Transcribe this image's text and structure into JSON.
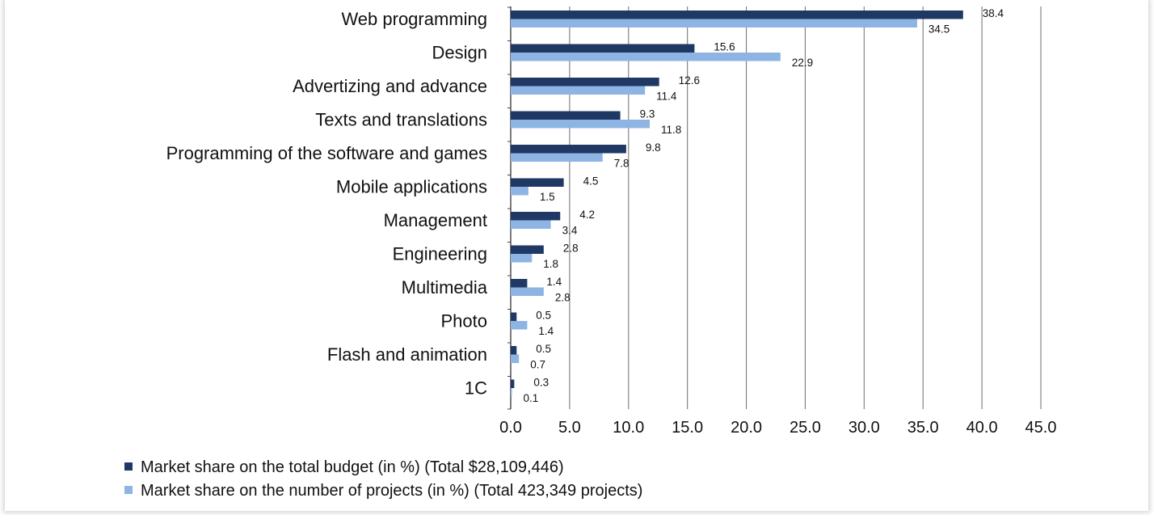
{
  "chart_data": {
    "type": "bar",
    "orientation": "horizontal",
    "title": "",
    "xlabel": "",
    "ylabel": "",
    "xlim": [
      0,
      45
    ],
    "x_ticks": [
      "0.0",
      "5.0",
      "10.0",
      "15.0",
      "20.0",
      "25.0",
      "30.0",
      "35.0",
      "40.0",
      "45.0"
    ],
    "grid": "vertical",
    "legend_position": "bottom",
    "categories": [
      "Web programming",
      "Design",
      "Advertizing and advance",
      "Texts and translations",
      "Programming of the software and games",
      "Mobile applications",
      "Management",
      "Engineering",
      "Multimedia",
      "Photo",
      "Flash and animation",
      "1C"
    ],
    "series": [
      {
        "name": "Market share on the total budget (in %) (Total $28,109,446)",
        "color": "#1f3864",
        "values": [
          38.4,
          15.6,
          12.6,
          9.3,
          9.8,
          4.5,
          4.2,
          2.8,
          1.4,
          0.5,
          0.5,
          0.3
        ],
        "labels": [
          "38.4",
          "15.6",
          "12.6",
          "9.3",
          "9.8",
          "4.5",
          "4.2",
          "2.8",
          "1.4",
          "0.5",
          "0.5",
          "0.3"
        ]
      },
      {
        "name": "Market share on the number of projects (in %) (Total 423,349 projects)",
        "color": "#8db4e2",
        "values": [
          34.5,
          22.9,
          11.4,
          11.8,
          7.8,
          1.5,
          3.4,
          1.8,
          2.8,
          1.4,
          0.7,
          0.1
        ],
        "labels": [
          "34.5",
          "22.9",
          "11.4",
          "11.8",
          "7.8",
          "1.5",
          "3.4",
          "1.8",
          "2.8",
          "1.4",
          "0.7",
          "0.1"
        ]
      }
    ]
  }
}
